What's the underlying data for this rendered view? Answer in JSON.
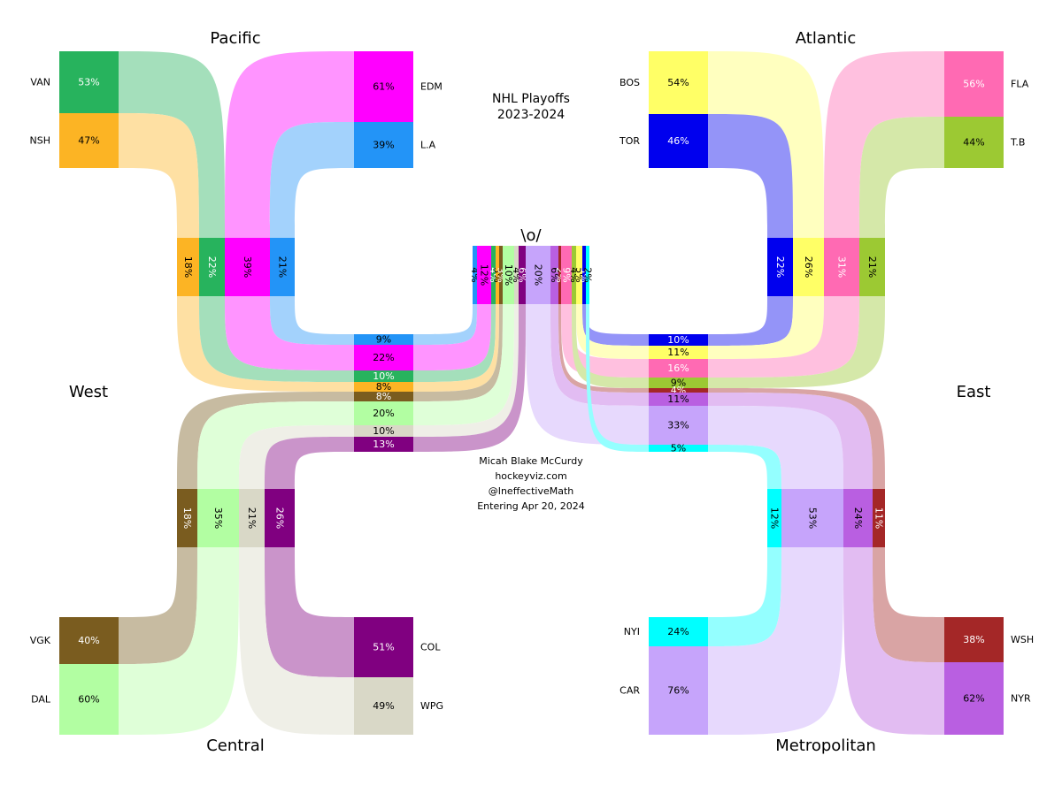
{
  "title": "NHL Playoffs",
  "subtitle": "2023-2024",
  "cup_label": "\\o/",
  "credits": [
    "Micah Blake McCurdy",
    "hockeyviz.com",
    "@IneffectiveMath",
    "Entering Apr 20, 2024"
  ],
  "conferences": [
    {
      "name": "West"
    },
    {
      "name": "East"
    }
  ],
  "divisions": [
    {
      "name": "Pacific"
    },
    {
      "name": "Central"
    },
    {
      "name": "Atlantic"
    },
    {
      "name": "Metropolitan"
    }
  ],
  "chart_data": {
    "type": "sankey",
    "round1": [
      {
        "team": "VAN",
        "value": "53%",
        "color": "#27b35d",
        "text": "#ffffff"
      },
      {
        "team": "NSH",
        "value": "47%",
        "color": "#fcb424",
        "text": "#000000"
      },
      {
        "team": "EDM",
        "value": "61%",
        "color": "#ff00ff",
        "text": "#000000"
      },
      {
        "team": "L.A",
        "value": "39%",
        "color": "#2394f7",
        "text": "#000000"
      },
      {
        "team": "VGK",
        "value": "40%",
        "color": "#7a5c1f",
        "text": "#ffffff"
      },
      {
        "team": "DAL",
        "value": "60%",
        "color": "#b2fea2",
        "text": "#000000"
      },
      {
        "team": "COL",
        "value": "51%",
        "color": "#800080",
        "text": "#ffffff"
      },
      {
        "team": "WPG",
        "value": "49%",
        "color": "#d9d8c7",
        "text": "#000000"
      },
      {
        "team": "BOS",
        "value": "54%",
        "color": "#ffff66",
        "text": "#000000"
      },
      {
        "team": "TOR",
        "value": "46%",
        "color": "#0000ee",
        "text": "#ffffff"
      },
      {
        "team": "FLA",
        "value": "56%",
        "color": "#ff6ab3",
        "text": "#ffffff"
      },
      {
        "team": "T.B",
        "value": "44%",
        "color": "#9cc933",
        "text": "#000000"
      },
      {
        "team": "NYI",
        "value": "24%",
        "color": "#00ffff",
        "text": "#000000"
      },
      {
        "team": "CAR",
        "value": "76%",
        "color": "#c6a4fb",
        "text": "#000000"
      },
      {
        "team": "WSH",
        "value": "38%",
        "color": "#a42727",
        "text": "#ffffff"
      },
      {
        "team": "NYR",
        "value": "62%",
        "color": "#b95fe1",
        "text": "#000000"
      }
    ],
    "round2": [
      {
        "team": "NSH",
        "value": "18%"
      },
      {
        "team": "VAN",
        "value": "22%"
      },
      {
        "team": "EDM",
        "value": "39%"
      },
      {
        "team": "L.A",
        "value": "21%"
      },
      {
        "team": "VGK",
        "value": "18%"
      },
      {
        "team": "DAL",
        "value": "35%"
      },
      {
        "team": "WPG",
        "value": "21%"
      },
      {
        "team": "COL",
        "value": "26%"
      },
      {
        "team": "TOR",
        "value": "22%"
      },
      {
        "team": "BOS",
        "value": "26%"
      },
      {
        "team": "FLA",
        "value": "31%"
      },
      {
        "team": "T.B",
        "value": "21%"
      },
      {
        "team": "NYI",
        "value": "12%"
      },
      {
        "team": "CAR",
        "value": "53%"
      },
      {
        "team": "NYR",
        "value": "24%"
      },
      {
        "team": "WSH",
        "value": "11%"
      }
    ],
    "conference_finals": [
      {
        "team": "L.A",
        "value": "9%"
      },
      {
        "team": "EDM",
        "value": "22%"
      },
      {
        "team": "VAN",
        "value": "10%"
      },
      {
        "team": "NSH",
        "value": "8%"
      },
      {
        "team": "VGK",
        "value": "8%"
      },
      {
        "team": "DAL",
        "value": "20%"
      },
      {
        "team": "WPG",
        "value": "10%"
      },
      {
        "team": "COL",
        "value": "13%"
      },
      {
        "team": "TOR",
        "value": "10%"
      },
      {
        "team": "BOS",
        "value": "11%"
      },
      {
        "team": "FLA",
        "value": "16%"
      },
      {
        "team": "T.B",
        "value": "9%"
      },
      {
        "team": "WSH",
        "value": "4%"
      },
      {
        "team": "NYR",
        "value": "11%"
      },
      {
        "team": "CAR",
        "value": "33%"
      },
      {
        "team": "NYI",
        "value": "5%"
      }
    ],
    "champion": [
      {
        "team": "L.A",
        "value": "4%"
      },
      {
        "team": "EDM",
        "value": "12%"
      },
      {
        "team": "VAN",
        "value": "4%"
      },
      {
        "team": "NSH",
        "value": "3%"
      },
      {
        "team": "VGK",
        "value": "3%"
      },
      {
        "team": "DAL",
        "value": "10%"
      },
      {
        "team": "WPG",
        "value": "4%"
      },
      {
        "team": "COL",
        "value": "6%"
      },
      {
        "team": "CAR",
        "value": "20%"
      },
      {
        "team": "NYR",
        "value": "6%"
      },
      {
        "team": "WSH",
        "value": "2%"
      },
      {
        "team": "FLA",
        "value": "9%"
      },
      {
        "team": "T.B",
        "value": "4%"
      },
      {
        "team": "BOS",
        "value": "5%"
      },
      {
        "team": "TOR",
        "value": "5%"
      },
      {
        "team": "NYI",
        "value": "2%"
      }
    ]
  }
}
